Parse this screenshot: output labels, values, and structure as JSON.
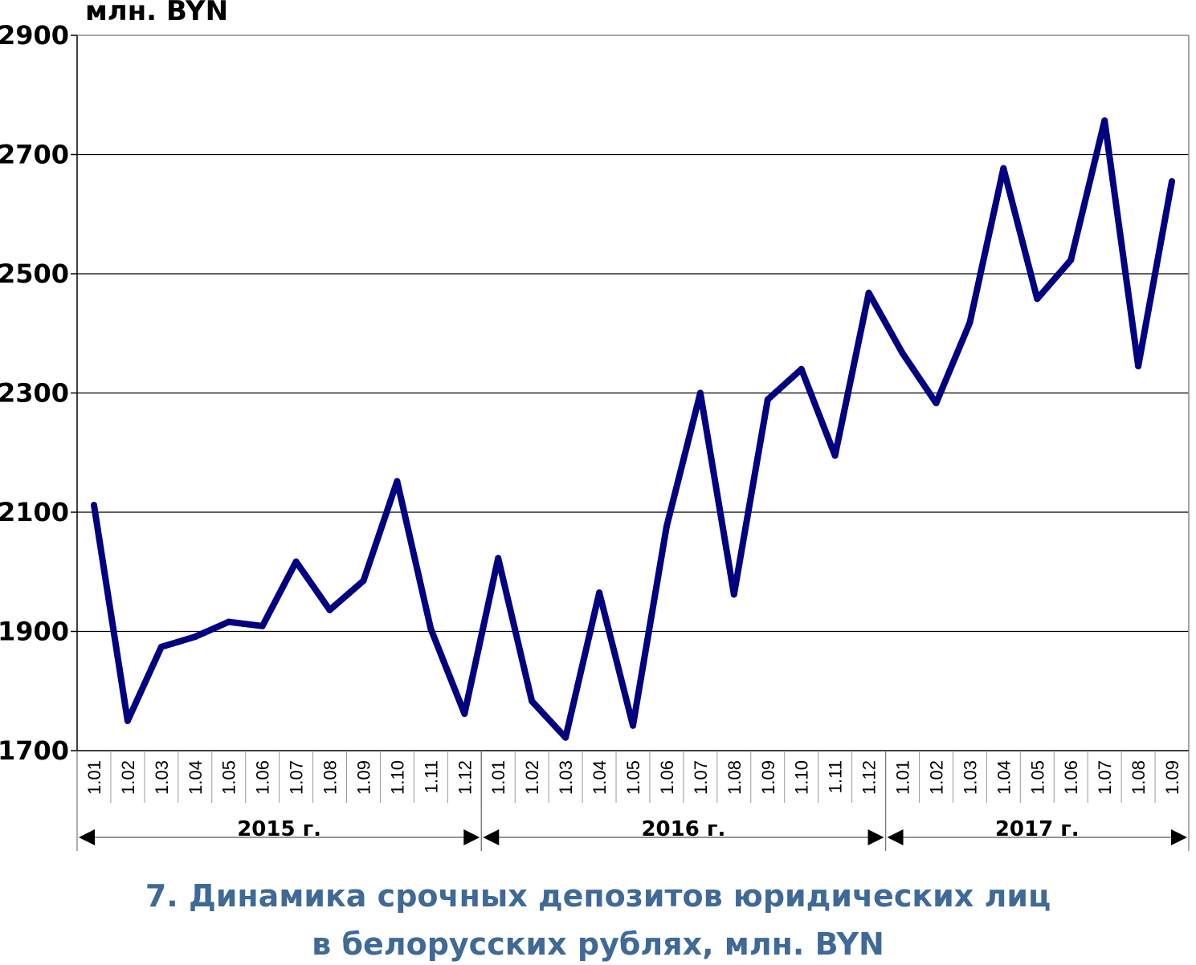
{
  "chart_data": {
    "type": "line",
    "unit_label": "млн. BYN",
    "caption_line1": "7. Динамика срочных депозитов юридических лиц",
    "caption_line2": "в белорусских рублях, млн. BYN",
    "ylim": [
      1700,
      2900
    ],
    "yticks": [
      1700,
      1900,
      2100,
      2300,
      2500,
      2700,
      2900
    ],
    "grid": true,
    "line_color": "#000080",
    "caption_color": "#3f6996",
    "categories": [
      "1.01",
      "1.02",
      "1.03",
      "1.04",
      "1.05",
      "1.06",
      "1.07",
      "1.08",
      "1.09",
      "1.10",
      "1.11",
      "1.12",
      "1.01",
      "1.02",
      "1.03",
      "1.04",
      "1.05",
      "1.06",
      "1.07",
      "1.08",
      "1.09",
      "1.10",
      "1.11",
      "1.12",
      "1.01",
      "1.02",
      "1.03",
      "1.04",
      "1.05",
      "1.06",
      "1.07",
      "1.08",
      "1.09"
    ],
    "years": [
      {
        "label": "2015 г.",
        "start": 0,
        "count": 12
      },
      {
        "label": "2016 г.",
        "start": 12,
        "count": 12
      },
      {
        "label": "2017 г.",
        "start": 24,
        "count": 9
      }
    ],
    "series": [
      {
        "values": [
          2112,
          1750,
          1874,
          1891,
          1916,
          1909,
          2017,
          1936,
          1985,
          2152,
          1904,
          1762,
          2023,
          1783,
          1722,
          1965,
          1742,
          2076,
          2300,
          1962,
          2289,
          2340,
          2195,
          2468,
          2367,
          2283,
          2418,
          2677,
          2458,
          2523,
          2757,
          2345,
          2655
        ]
      }
    ]
  }
}
